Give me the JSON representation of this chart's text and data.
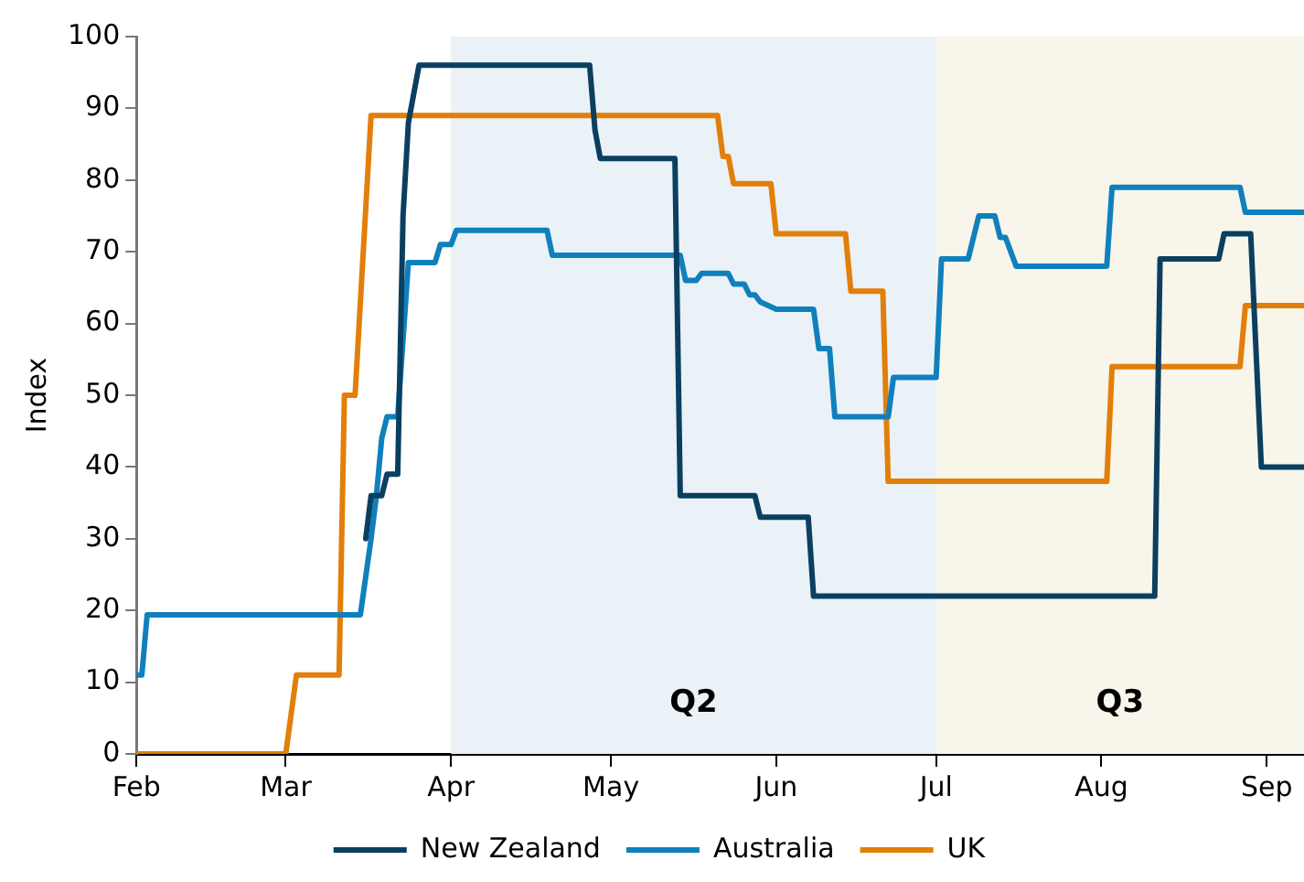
{
  "chart_data": {
    "type": "line",
    "ylabel": "Index",
    "xlim": [
      "--02-01",
      "--09-08"
    ],
    "xticks": [
      {
        "value": "--02-01",
        "label": "Feb"
      },
      {
        "value": "--03-01",
        "label": "Mar"
      },
      {
        "value": "--04-01",
        "label": "Apr"
      },
      {
        "value": "--05-01",
        "label": "May"
      },
      {
        "value": "--06-01",
        "label": "Jun"
      },
      {
        "value": "--07-01",
        "label": "Jul"
      },
      {
        "value": "--08-01",
        "label": "Aug"
      },
      {
        "value": "--09-01",
        "label": "Sep"
      }
    ],
    "ylim": [
      0,
      100
    ],
    "yticks": [
      0,
      10,
      20,
      30,
      40,
      50,
      60,
      70,
      80,
      90,
      100
    ],
    "grid": false,
    "legend": "bottom",
    "marker": "none",
    "line_style": "solid",
    "bands": [
      {
        "axis": "x",
        "from": "--04-01",
        "to": "--07-01",
        "label": "Q2",
        "color": "#eaf2f7"
      },
      {
        "axis": "x",
        "from": "--07-01",
        "to": "--09-08",
        "label": "Q3",
        "color": "#f8f5ea"
      }
    ],
    "series": [
      {
        "name": "New Zealand",
        "color": "#0b3f60",
        "x": [
          "--03-16",
          "--03-17",
          "--03-19",
          "--03-20",
          "--03-22",
          "--03-23",
          "--03-24",
          "--03-26",
          "--04-27",
          "--04-28",
          "--04-29",
          "--05-13",
          "--05-14",
          "--05-28",
          "--05-29",
          "--06-07",
          "--06-08",
          "--08-11",
          "--08-12",
          "--08-23",
          "--08-24",
          "--08-29",
          "--08-31",
          "--09-08"
        ],
        "values": [
          30,
          36,
          36,
          39,
          39,
          75,
          88,
          96,
          96,
          87,
          83,
          83,
          36,
          36,
          33,
          33,
          22,
          22,
          69,
          69,
          72.5,
          72.5,
          40,
          40
        ]
      },
      {
        "name": "Australia",
        "color": "#1080bd",
        "x": [
          "--02-01",
          "--02-02",
          "--02-03",
          "--03-15",
          "--03-17",
          "--03-18",
          "--03-19",
          "--03-20",
          "--03-22",
          "--03-24",
          "--03-29",
          "--03-30",
          "--04-01",
          "--04-02",
          "--04-19",
          "--04-20",
          "--05-14",
          "--05-15",
          "--05-17",
          "--05-18",
          "--05-23",
          "--05-24",
          "--05-26",
          "--05-27",
          "--05-28",
          "--05-29",
          "--06-01",
          "--06-08",
          "--06-09",
          "--06-11",
          "--06-12",
          "--06-22",
          "--06-23",
          "--07-01",
          "--07-02",
          "--07-07",
          "--07-09",
          "--07-12",
          "--07-13",
          "--07-14",
          "--07-16",
          "--08-02",
          "--08-03",
          "--08-27",
          "--08-28",
          "--09-08"
        ],
        "values": [
          11,
          11,
          19.4,
          19.4,
          30,
          36,
          44,
          47,
          47,
          68.5,
          68.5,
          71,
          71,
          73,
          73,
          69.5,
          69.5,
          66,
          66,
          67,
          67,
          65.5,
          65.5,
          64,
          64,
          63,
          62,
          62,
          56.5,
          56.5,
          47,
          47,
          52.5,
          52.5,
          69,
          69,
          75,
          75,
          72,
          72,
          68,
          68,
          79,
          79,
          75.5,
          75.5
        ]
      },
      {
        "name": "UK",
        "color": "#e27f0a",
        "x": [
          "--02-01",
          "--03-01",
          "--03-03",
          "--03-11",
          "--03-12",
          "--03-14",
          "--03-17",
          "--05-21",
          "--05-22",
          "--05-23",
          "--05-24",
          "--05-31",
          "--06-01",
          "--06-14",
          "--06-15",
          "--06-21",
          "--06-22",
          "--08-02",
          "--08-03",
          "--08-27",
          "--08-28",
          "--09-08"
        ],
        "values": [
          0,
          0,
          11,
          11,
          50,
          50,
          89,
          89,
          83.3,
          83.3,
          79.5,
          79.5,
          72.5,
          72.5,
          64.5,
          64.5,
          38,
          38,
          54,
          54,
          62.5,
          62.5
        ]
      }
    ]
  }
}
